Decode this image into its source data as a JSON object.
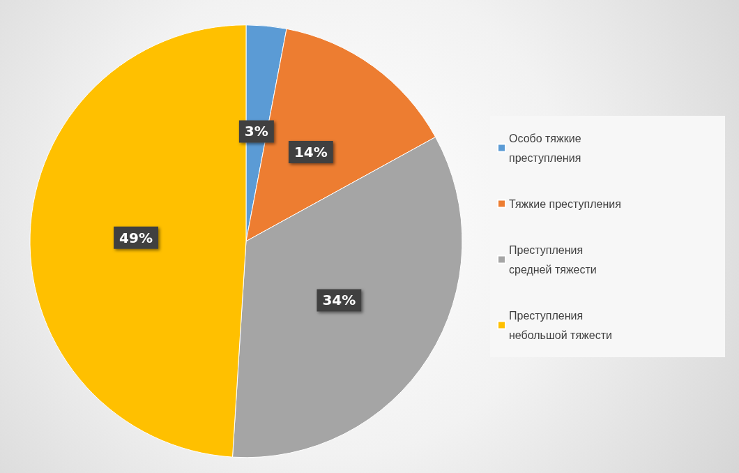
{
  "chart_data": {
    "type": "pie",
    "categories": [
      "Особо тяжкие преступления",
      "Тяжкие преступления",
      "Преступления средней тяжести",
      "Преступления небольшой тяжести"
    ],
    "values": [
      3,
      14,
      34,
      49
    ],
    "colors": [
      "#5b9bd5",
      "#ed7d31",
      "#a5a5a5",
      "#ffc000"
    ],
    "value_labels": [
      "3%",
      "14%",
      "34%",
      "49%"
    ],
    "legend": "right"
  }
}
